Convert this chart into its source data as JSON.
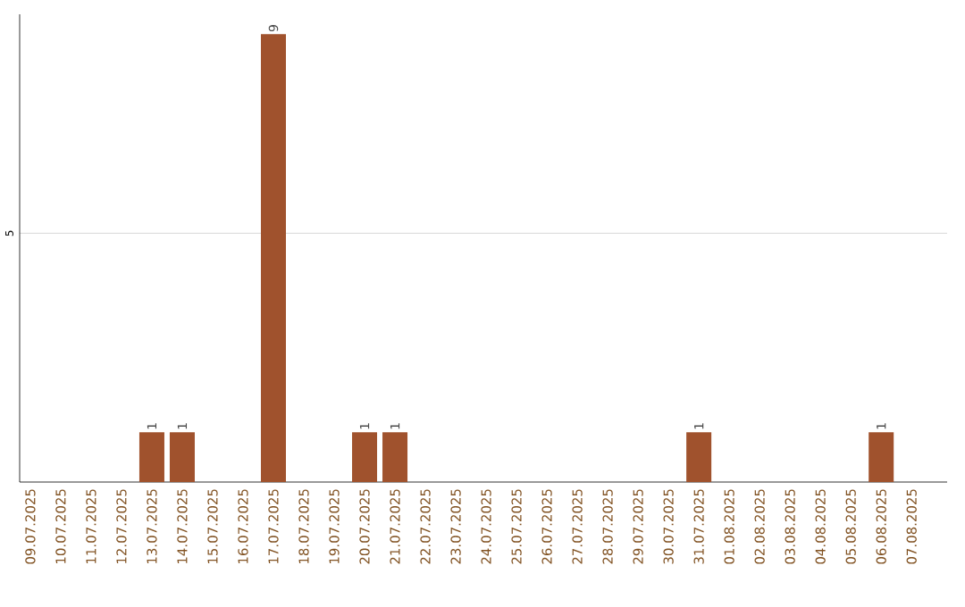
{
  "chart_data": {
    "type": "bar",
    "categories": [
      "09.07.2025",
      "10.07.2025",
      "11.07.2025",
      "12.07.2025",
      "13.07.2025",
      "14.07.2025",
      "15.07.2025",
      "16.07.2025",
      "17.07.2025",
      "18.07.2025",
      "19.07.2025",
      "20.07.2025",
      "21.07.2025",
      "22.07.2025",
      "23.07.2025",
      "24.07.2025",
      "25.07.2025",
      "26.07.2025",
      "27.07.2025",
      "28.07.2025",
      "29.07.2025",
      "30.07.2025",
      "31.07.2025",
      "01.08.2025",
      "02.08.2025",
      "03.08.2025",
      "04.08.2025",
      "05.08.2025",
      "06.08.2025",
      "07.08.2025"
    ],
    "values": [
      0,
      0,
      0,
      0,
      1,
      1,
      0,
      0,
      9,
      0,
      0,
      1,
      1,
      0,
      0,
      0,
      0,
      0,
      0,
      0,
      0,
      0,
      1,
      0,
      0,
      0,
      0,
      0,
      1,
      0
    ],
    "value_labels": [
      null,
      null,
      null,
      null,
      "1",
      "1",
      null,
      null,
      "9",
      null,
      null,
      "1",
      "1",
      null,
      null,
      null,
      null,
      null,
      null,
      null,
      null,
      null,
      "1",
      null,
      null,
      null,
      null,
      null,
      "1",
      null
    ],
    "color": "#a0522d",
    "ylim": [
      0,
      9.4
    ],
    "yticks": [
      5
    ],
    "grid": "y"
  }
}
